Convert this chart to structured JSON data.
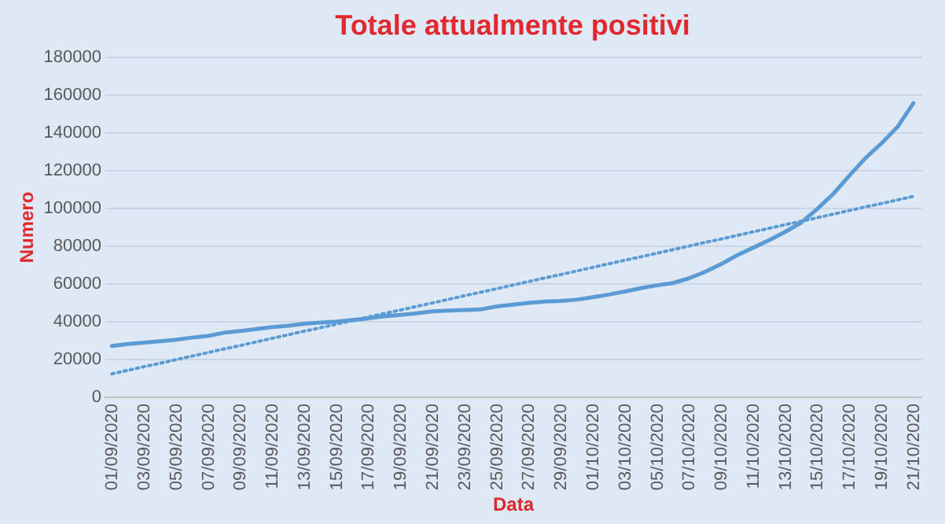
{
  "chart_data": {
    "type": "line",
    "title": "Totale attualmente positivi",
    "xlabel": "Data",
    "ylabel": "Numero",
    "categories": [
      "01/09/2020",
      null,
      "03/09/2020",
      null,
      "05/09/2020",
      null,
      "07/09/2020",
      null,
      "09/09/2020",
      null,
      "11/09/2020",
      null,
      "13/09/2020",
      null,
      "15/09/2020",
      null,
      "17/09/2020",
      null,
      "19/09/2020",
      null,
      "21/09/2020",
      null,
      "23/09/2020",
      null,
      "25/09/2020",
      null,
      "27/09/2020",
      null,
      "29/09/2020",
      null,
      "01/10/2020",
      null,
      "03/10/2020",
      null,
      "05/10/2020",
      null,
      "07/10/2020",
      null,
      "09/10/2020",
      null,
      "11/10/2020",
      null,
      "13/10/2020",
      null,
      "15/10/2020",
      null,
      "17/10/2020",
      null,
      "19/10/2020",
      null,
      "21/10/2020"
    ],
    "series": [
      {
        "color": "#5b9bd5",
        "line_style": "solid",
        "values": [
          26800,
          27800,
          28500,
          29300,
          30100,
          31200,
          32100,
          33800,
          34700,
          35700,
          36800,
          37500,
          38500,
          39200,
          39700,
          40500,
          41400,
          42500,
          43200,
          44100,
          45100,
          45500,
          45800,
          46100,
          47700,
          48600,
          49600,
          50300,
          50600,
          51300,
          52600,
          54000,
          55600,
          57400,
          58900,
          60100,
          62600,
          66000,
          70100,
          74800,
          78800,
          82800,
          87200,
          92100,
          99300,
          107300,
          116900,
          126200,
          134000,
          142700,
          155400
        ]
      },
      {
        "color": "#5b9bd5",
        "line_style": "dotted",
        "values": [
          12000,
          13900,
          15800,
          17600,
          19500,
          21400,
          23300,
          25200,
          27000,
          28900,
          30800,
          32700,
          34600,
          36400,
          38300,
          40200,
          42100,
          44000,
          45800,
          47700,
          49600,
          51500,
          53400,
          55200,
          57100,
          59000,
          60900,
          62800,
          64600,
          66500,
          68400,
          70300,
          72200,
          74000,
          75900,
          77800,
          79700,
          81600,
          83400,
          85300,
          87200,
          89100,
          91000,
          92800,
          94700,
          96600,
          98500,
          100400,
          102200,
          104100,
          106000
        ]
      }
    ],
    "ylim": [
      0,
      180000
    ],
    "yticks": [
      0,
      20000,
      40000,
      60000,
      80000,
      100000,
      120000,
      140000,
      160000,
      180000
    ],
    "grid": "y"
  }
}
